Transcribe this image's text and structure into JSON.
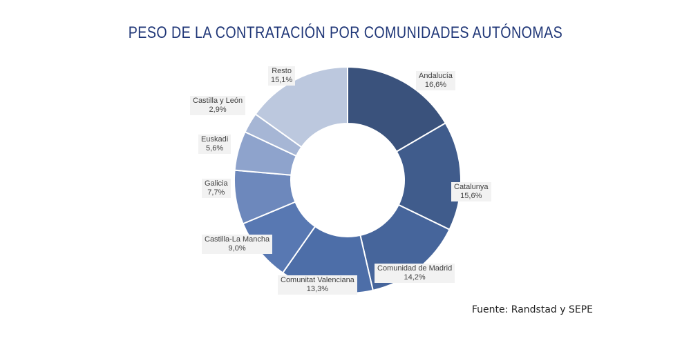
{
  "chart_data": {
    "type": "pie",
    "title": "PESO DE LA CONTRATACIÓN POR COMUNIDADES AUTÓNOMAS",
    "source": "Fuente: Randstad y SEPE",
    "slices": [
      {
        "label": "Andalucía",
        "value": 16.6,
        "value_label": "16,6%",
        "color": "#3a527c"
      },
      {
        "label": "Catalunya",
        "value": 15.6,
        "value_label": "15,6%",
        "color": "#405c8c"
      },
      {
        "label": "Comunidad de Madrid",
        "value": 14.2,
        "value_label": "14,2%",
        "color": "#46659b"
      },
      {
        "label": "Comunitat Valenciana",
        "value": 13.3,
        "value_label": "13,3%",
        "color": "#4d6ea8"
      },
      {
        "label": "Castilla-La Mancha",
        "value": 9.0,
        "value_label": "9,0%",
        "color": "#5878b2"
      },
      {
        "label": "Galicia",
        "value": 7.7,
        "value_label": "7,7%",
        "color": "#6d88bc"
      },
      {
        "label": "Euskadi",
        "value": 5.6,
        "value_label": "5,6%",
        "color": "#8ea3cc"
      },
      {
        "label": "Castilla y León",
        "value": 2.9,
        "value_label": "2,9%",
        "color": "#a6b6d5"
      },
      {
        "label": "Resto",
        "value": 15.1,
        "value_label": "15,1%",
        "color": "#bcc8de"
      }
    ]
  }
}
